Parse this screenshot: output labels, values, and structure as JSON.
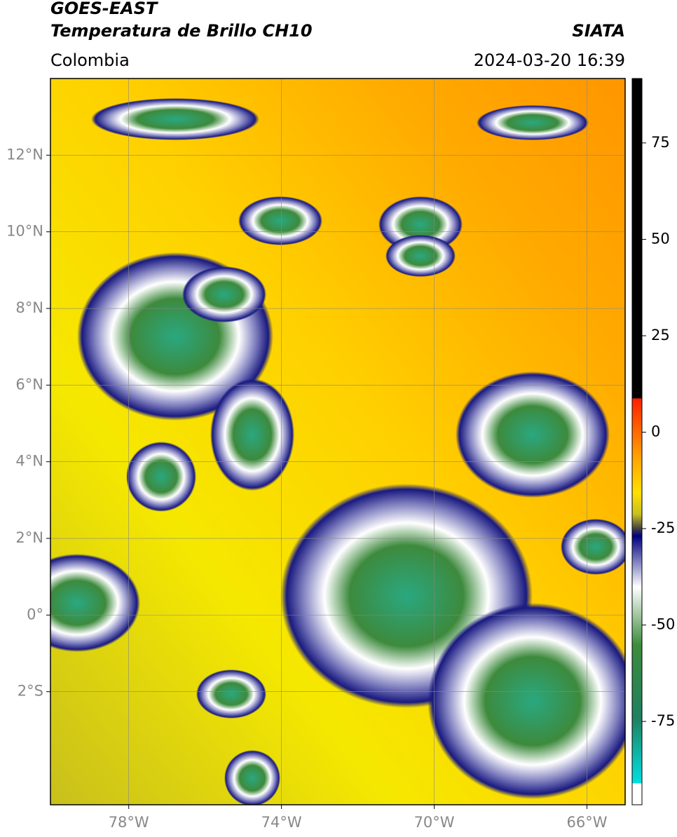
{
  "header": {
    "title_lines": [
      "GOES-EAST",
      "Temperatura de Brillo CH10"
    ],
    "agency": "SIATA",
    "region": "Colombia",
    "timestamp": "2024-03-20 16:39"
  },
  "map": {
    "xlim": [
      -80.05,
      -65.0
    ],
    "ylim": [
      -4.95,
      14.0
    ],
    "grid": true,
    "xticks": [
      {
        "value": -78,
        "label": "78°W"
      },
      {
        "value": -74,
        "label": "74°W"
      },
      {
        "value": -70,
        "label": "70°W"
      },
      {
        "value": -66,
        "label": "66°W"
      }
    ],
    "yticks": [
      {
        "value": 12,
        "label": "12°N"
      },
      {
        "value": 10,
        "label": "10°N"
      },
      {
        "value": 8,
        "label": "8°N"
      },
      {
        "value": 6,
        "label": "6°N"
      },
      {
        "value": 4,
        "label": "4°N"
      },
      {
        "value": 2,
        "label": "2°N"
      },
      {
        "value": 0,
        "label": "0°"
      },
      {
        "value": -2,
        "label": "2°S"
      }
    ]
  },
  "colorbar": {
    "lim": [
      -96.6,
      91.7
    ],
    "ticks": [
      75,
      50,
      25,
      0,
      -25,
      -50,
      -75
    ]
  }
}
